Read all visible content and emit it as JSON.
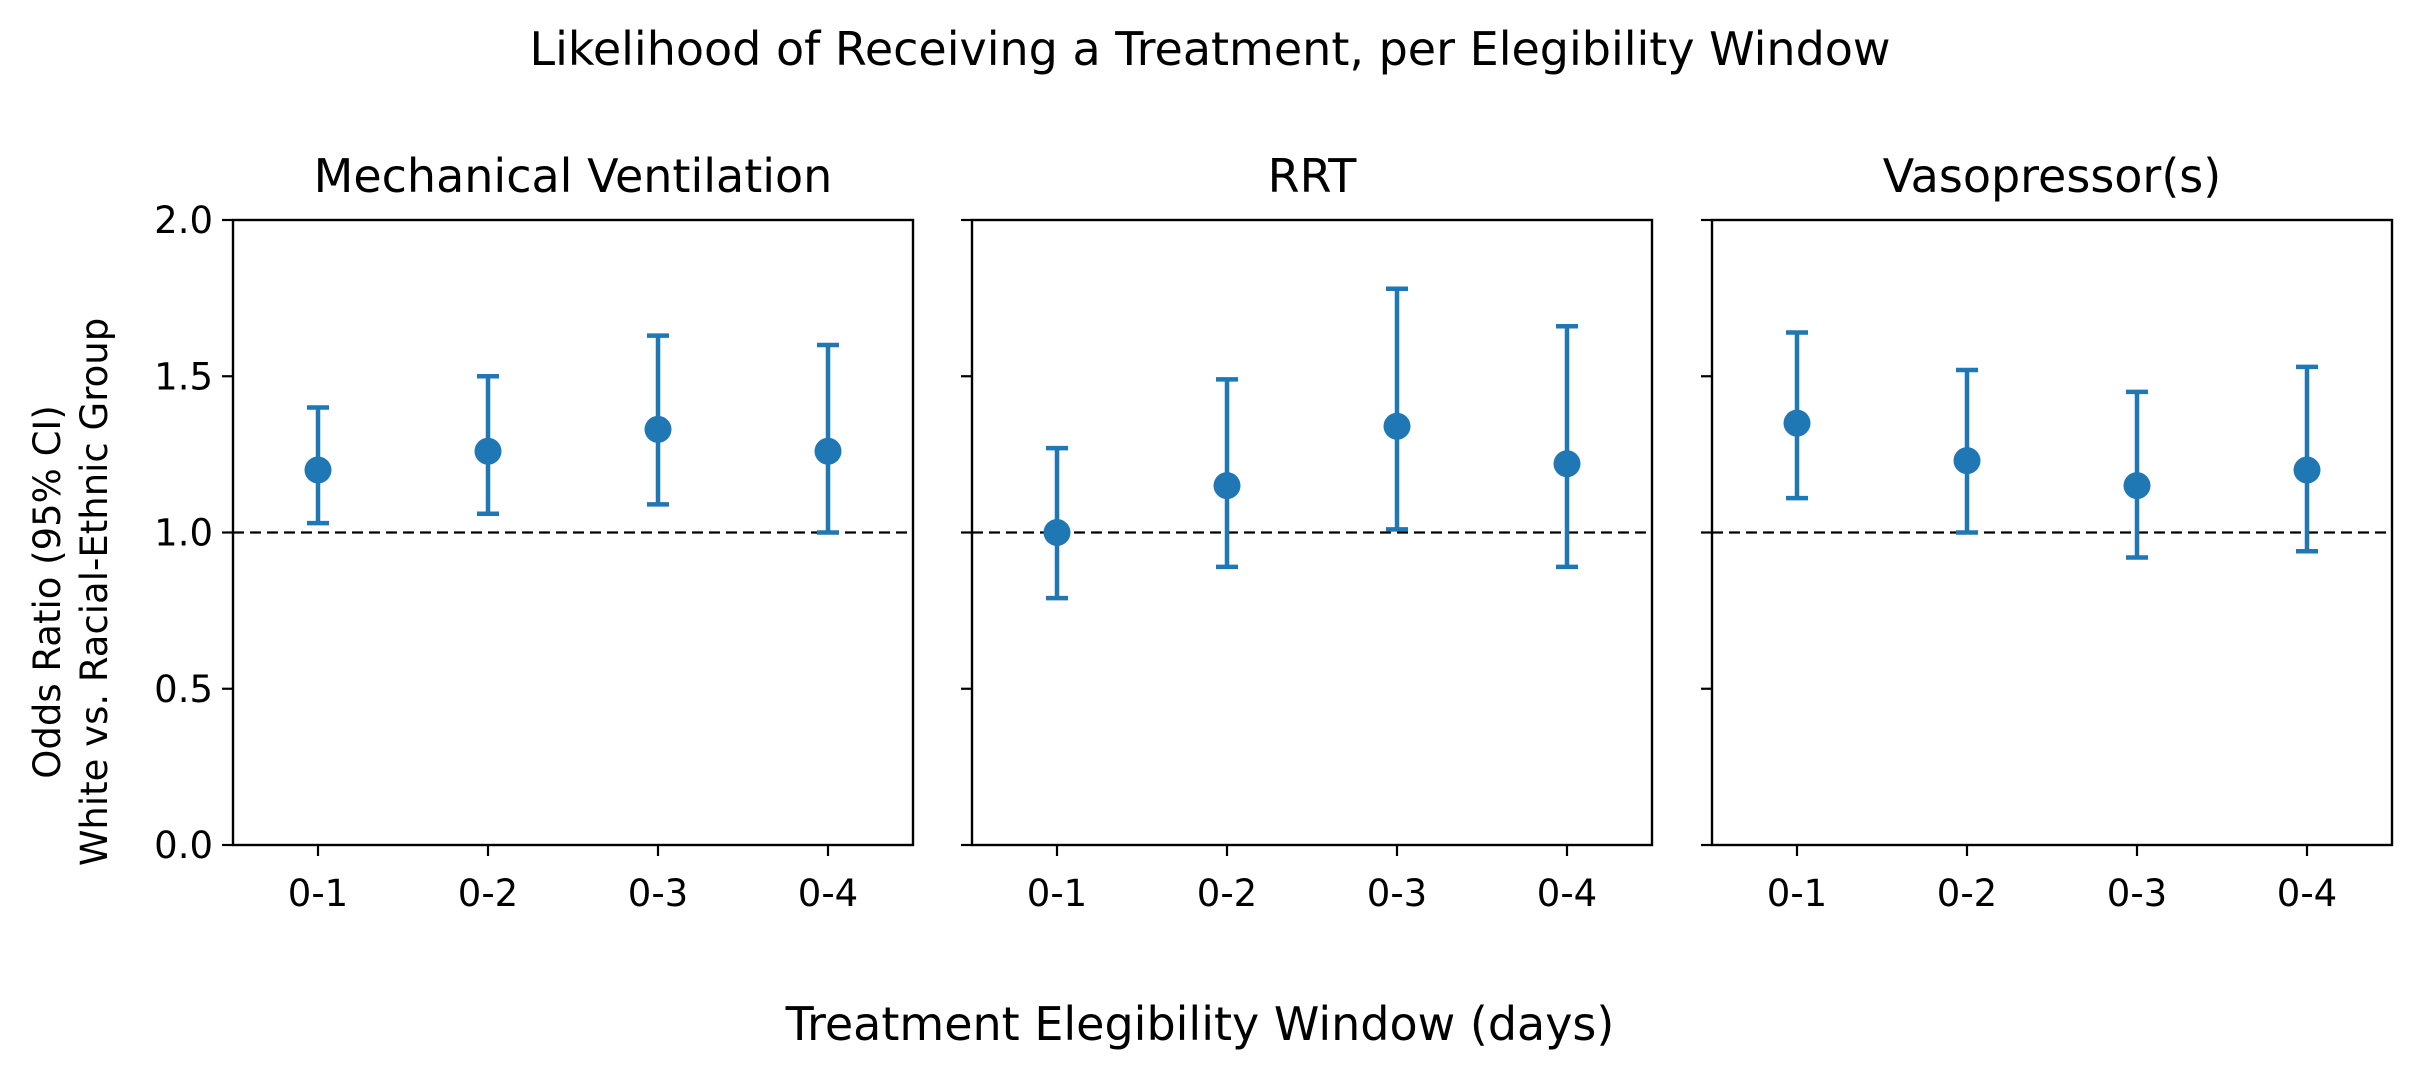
{
  "figure": {
    "suptitle": "Likelihood of Receiving a Treatment, per Elegibility Window",
    "xlabel": "Treatment Elegibility Window (days)",
    "ylabel_line1": "Odds Ratio (95% CI)",
    "ylabel_line2": "White vs. Racial-Ethnic Group"
  },
  "colors": {
    "marker": "#1f77b4",
    "reference": "#000000"
  },
  "chart_data": [
    {
      "type": "scatter",
      "title": "Mechanical Ventilation",
      "categories": [
        "0-1",
        "0-2",
        "0-3",
        "0-4"
      ],
      "values": [
        1.2,
        1.26,
        1.33,
        1.26
      ],
      "ci_lower": [
        1.03,
        1.06,
        1.09,
        1.0
      ],
      "ci_upper": [
        1.4,
        1.5,
        1.63,
        1.6
      ],
      "ylim": [
        0.0,
        2.0
      ],
      "yticks": [
        "0.0",
        "0.5",
        "1.0",
        "1.5",
        "2.0"
      ],
      "reference_line": 1.0,
      "grid": false
    },
    {
      "type": "scatter",
      "title": "RRT",
      "categories": [
        "0-1",
        "0-2",
        "0-3",
        "0-4"
      ],
      "values": [
        1.0,
        1.15,
        1.34,
        1.22
      ],
      "ci_lower": [
        0.79,
        0.89,
        1.01,
        0.89
      ],
      "ci_upper": [
        1.27,
        1.49,
        1.78,
        1.66
      ],
      "ylim": [
        0.0,
        2.0
      ],
      "reference_line": 1.0,
      "grid": false
    },
    {
      "type": "scatter",
      "title": "Vasopressor(s)",
      "categories": [
        "0-1",
        "0-2",
        "0-3",
        "0-4"
      ],
      "values": [
        1.35,
        1.23,
        1.15,
        1.2
      ],
      "ci_lower": [
        1.11,
        1.0,
        0.92,
        0.94
      ],
      "ci_upper": [
        1.64,
        1.52,
        1.45,
        1.53
      ],
      "ylim": [
        0.0,
        2.0
      ],
      "reference_line": 1.0,
      "grid": false
    }
  ]
}
